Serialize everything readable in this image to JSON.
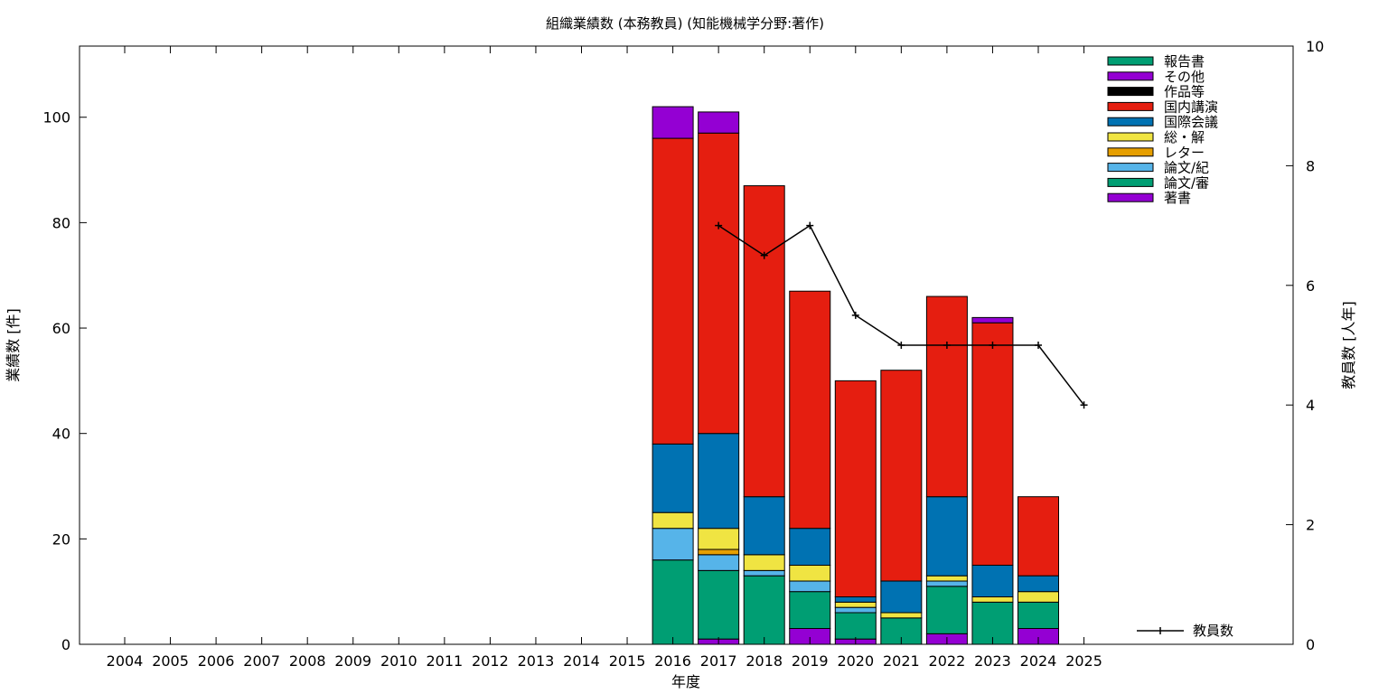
{
  "chart_data": {
    "type": "bar",
    "title": "組織業績数 (本務教員) (知能機械学分野:著作)",
    "xlabel": "年度",
    "ylabel": "業績数 [件]",
    "y2label": "教員数 [人年]",
    "ylim": [
      0,
      113.5
    ],
    "y2lim": [
      0,
      10
    ],
    "yticks": [
      0,
      20,
      40,
      60,
      80,
      100
    ],
    "y2ticks": [
      0,
      2,
      4,
      6,
      8,
      10
    ],
    "stacked": true,
    "grid": false,
    "legend_position": "top-right",
    "categories": [
      "2004",
      "2005",
      "2006",
      "2007",
      "2008",
      "2009",
      "2010",
      "2011",
      "2012",
      "2013",
      "2014",
      "2015",
      "2016",
      "2017",
      "2018",
      "2019",
      "2020",
      "2021",
      "2022",
      "2023",
      "2024",
      "2025"
    ],
    "series": [
      {
        "name": "著書",
        "color": "#9400D3",
        "values": [
          0,
          0,
          0,
          0,
          0,
          0,
          0,
          0,
          0,
          0,
          0,
          0,
          0,
          1,
          0,
          3,
          1,
          0,
          2,
          0,
          3,
          0
        ]
      },
      {
        "name": "論文/審",
        "color": "#009E73",
        "values": [
          0,
          0,
          0,
          0,
          0,
          0,
          0,
          0,
          0,
          0,
          0,
          0,
          16,
          13,
          13,
          7,
          5,
          5,
          9,
          8,
          5,
          0
        ]
      },
      {
        "name": "論文/紀",
        "color": "#56B4E9",
        "values": [
          0,
          0,
          0,
          0,
          0,
          0,
          0,
          0,
          0,
          0,
          0,
          0,
          6,
          3,
          1,
          2,
          1,
          0,
          1,
          0,
          0,
          0
        ]
      },
      {
        "name": "レター",
        "color": "#E69F00",
        "values": [
          0,
          0,
          0,
          0,
          0,
          0,
          0,
          0,
          0,
          0,
          0,
          0,
          0,
          1,
          0,
          0,
          0,
          0,
          0,
          0,
          0,
          0
        ]
      },
      {
        "name": "総・解",
        "color": "#F0E442",
        "values": [
          0,
          0,
          0,
          0,
          0,
          0,
          0,
          0,
          0,
          0,
          0,
          0,
          3,
          4,
          3,
          3,
          1,
          1,
          1,
          1,
          2,
          0
        ]
      },
      {
        "name": "国際会議",
        "color": "#0072B2",
        "values": [
          0,
          0,
          0,
          0,
          0,
          0,
          0,
          0,
          0,
          0,
          0,
          0,
          13,
          18,
          11,
          7,
          1,
          6,
          15,
          6,
          3,
          0
        ]
      },
      {
        "name": "国内講演",
        "color": "#E51E10",
        "values": [
          0,
          0,
          0,
          0,
          0,
          0,
          0,
          0,
          0,
          0,
          0,
          0,
          58,
          57,
          59,
          45,
          41,
          40,
          38,
          46,
          15,
          0
        ]
      },
      {
        "name": "作品等",
        "color": "#000000",
        "values": [
          0,
          0,
          0,
          0,
          0,
          0,
          0,
          0,
          0,
          0,
          0,
          0,
          0,
          0,
          0,
          0,
          0,
          0,
          0,
          0,
          0,
          0
        ]
      },
      {
        "name": "その他",
        "color": "#9400D3",
        "values": [
          0,
          0,
          0,
          0,
          0,
          0,
          0,
          0,
          0,
          0,
          0,
          0,
          6,
          4,
          0,
          0,
          0,
          0,
          0,
          1,
          0,
          0
        ]
      },
      {
        "name": "報告書",
        "color": "#009E73",
        "values": [
          0,
          0,
          0,
          0,
          0,
          0,
          0,
          0,
          0,
          0,
          0,
          0,
          0,
          0,
          0,
          0,
          0,
          0,
          0,
          0,
          0,
          0
        ]
      }
    ],
    "line_series": {
      "name": "教員数",
      "color": "#000000",
      "axis": "y2",
      "x": [
        "2017",
        "2018",
        "2019",
        "2020",
        "2021",
        "2022",
        "2023",
        "2024",
        "2025"
      ],
      "values": [
        7,
        6.5,
        7,
        5.5,
        5,
        5,
        5,
        5,
        4
      ]
    }
  }
}
